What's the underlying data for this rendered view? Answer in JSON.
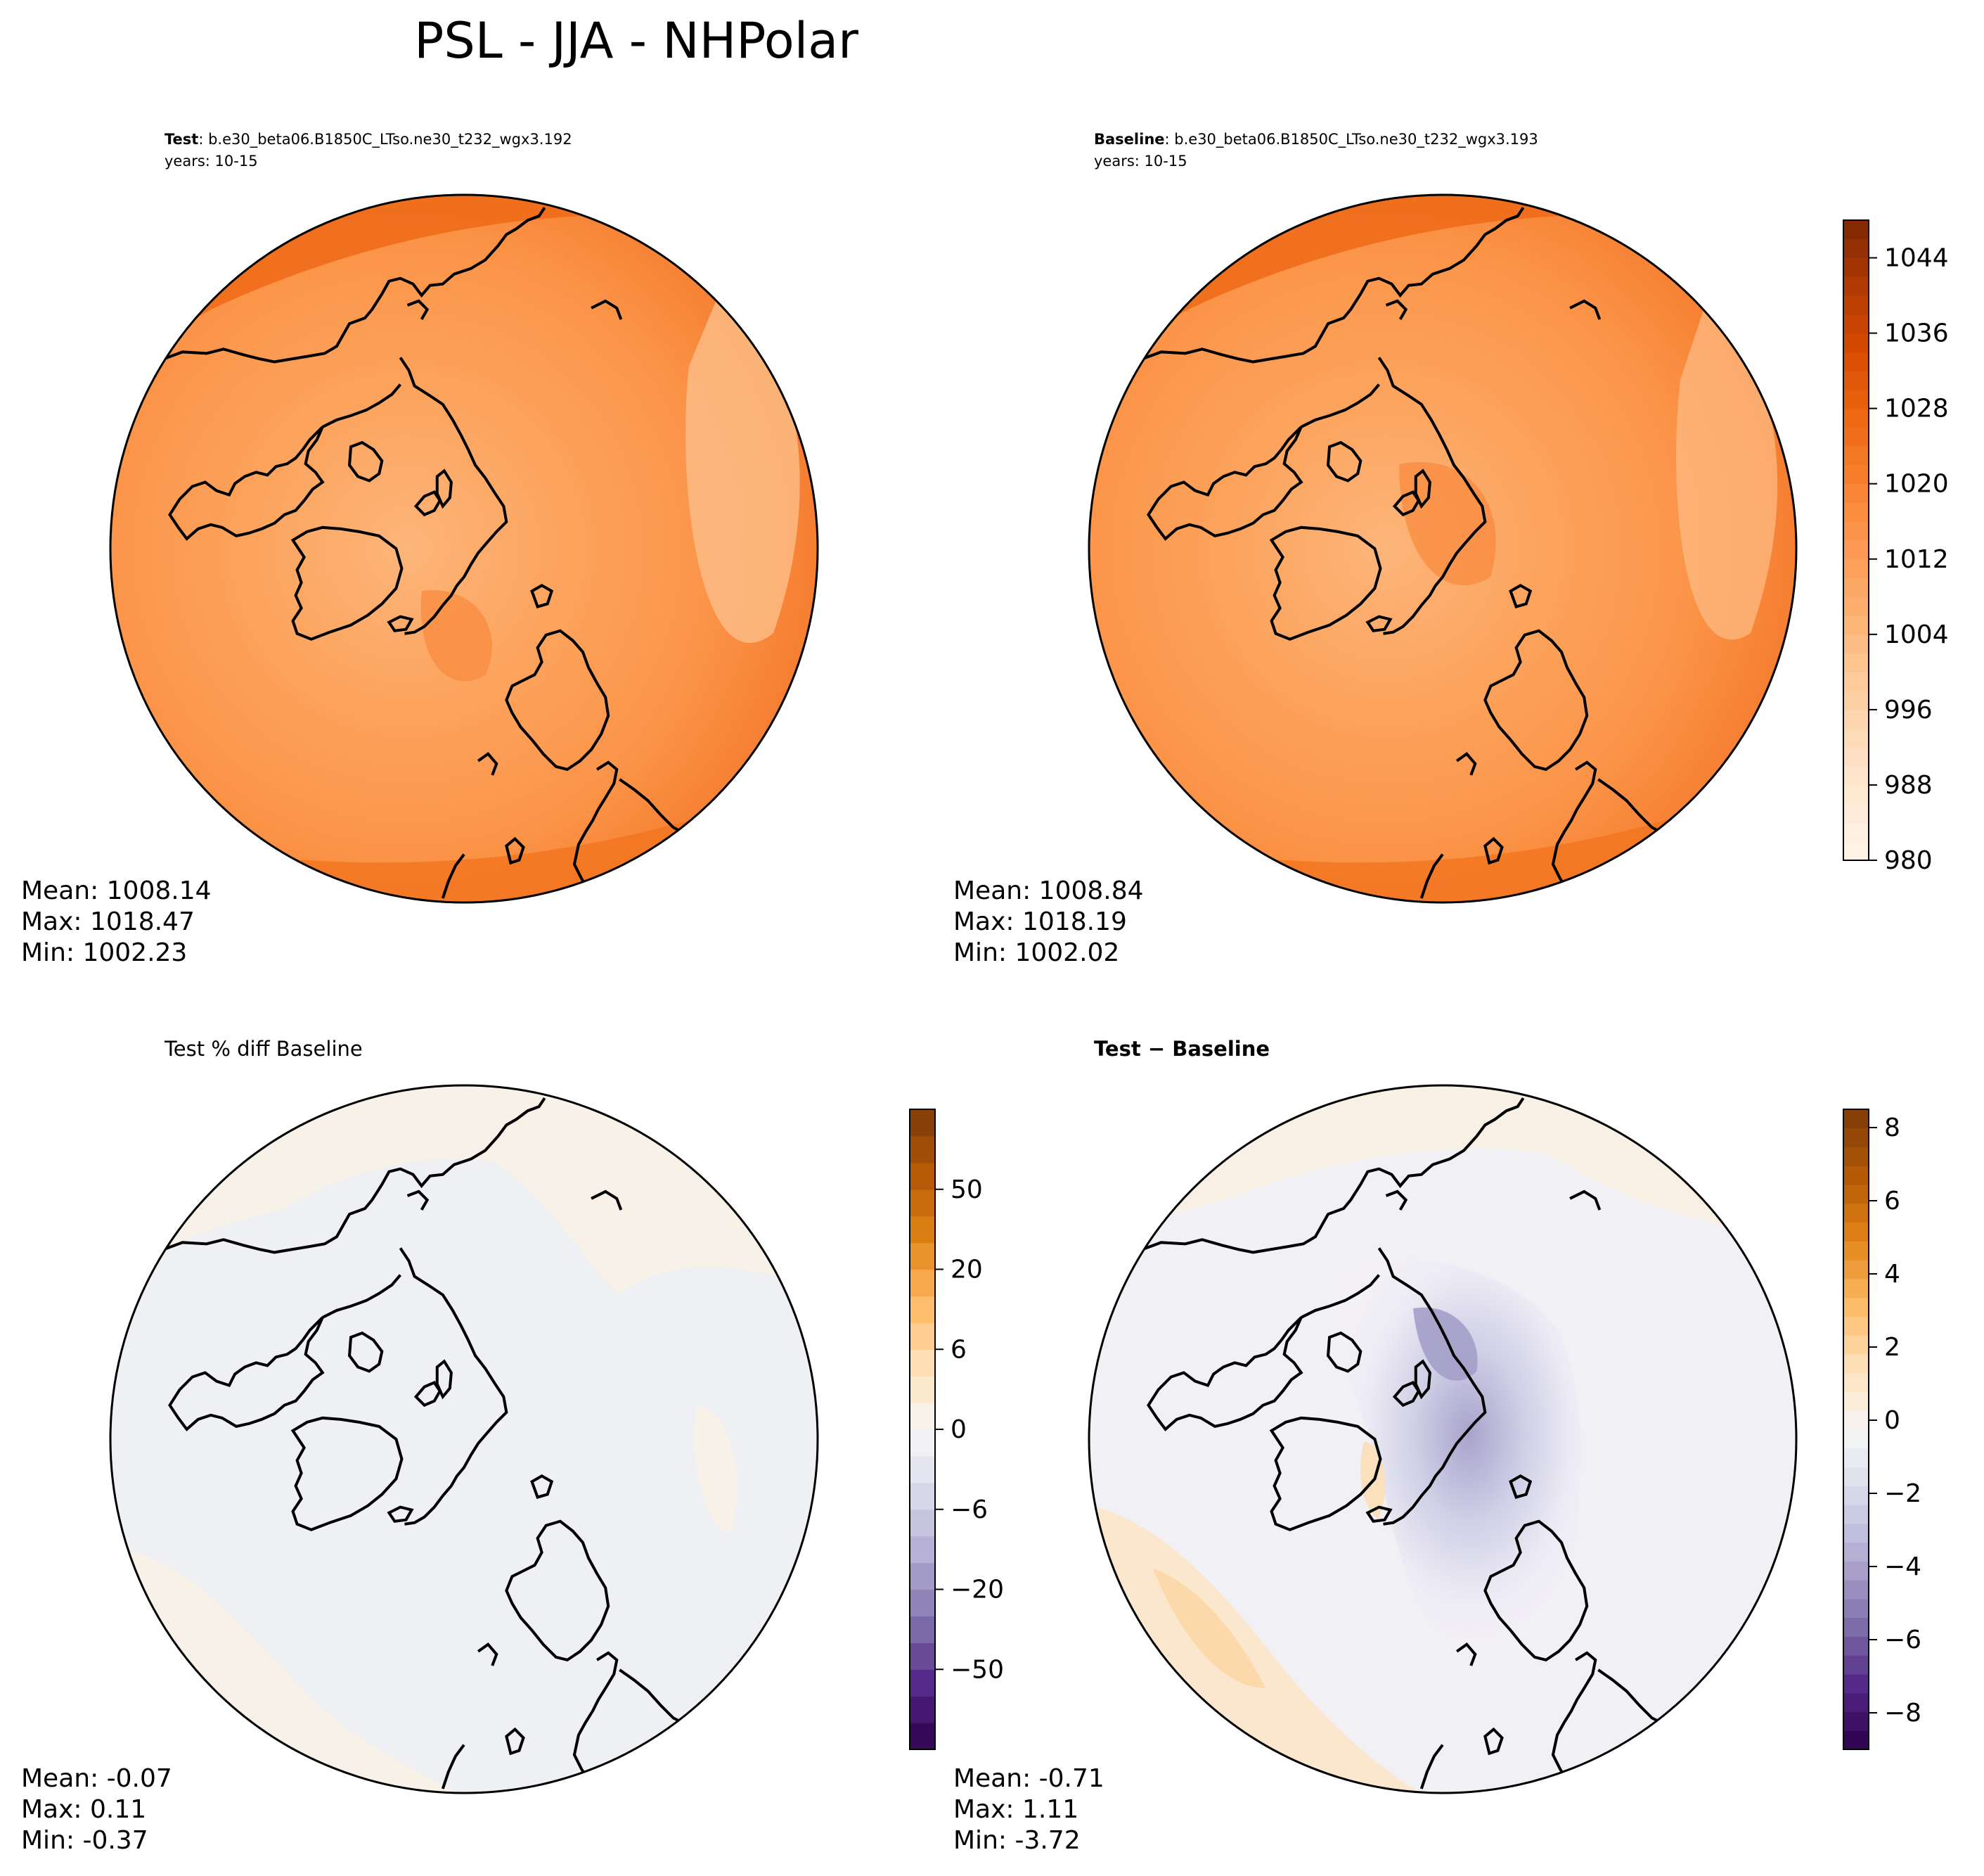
{
  "figure": {
    "title": "PSL - JJA - NHPolar"
  },
  "colors": {
    "oranges": [
      "#fff5eb",
      "#fee9d4",
      "#fddab6",
      "#fdc692",
      "#fdad6c",
      "#fd9650",
      "#f87f2c",
      "#ec6512",
      "#d84901",
      "#b03a03",
      "#7f2704"
    ],
    "diverging": [
      "#2d004b",
      "#542788",
      "#8073ac",
      "#b2abd2",
      "#d8daeb",
      "#f7f7f7",
      "#fee0b6",
      "#fdb863",
      "#e08214",
      "#b35806",
      "#7f3b08"
    ]
  },
  "chart_data": [
    {
      "type": "heatmap",
      "panel": "test",
      "title_bold": "Test",
      "title_rest": ": b.e30_beta06.B1850C_LTso.ne30_t232_wgx3.192",
      "subtitle": "years: 10-15",
      "projection": "North Polar Stereographic",
      "stats": {
        "mean": "Mean: 1008.14",
        "max": "Max: 1018.47",
        "min": "Min: 1002.23"
      }
    },
    {
      "type": "heatmap",
      "panel": "baseline",
      "title_bold": "Baseline",
      "title_rest": ": b.e30_beta06.B1850C_LTso.ne30_t232_wgx3.193",
      "subtitle": "years: 10-15",
      "projection": "North Polar Stereographic",
      "stats": {
        "mean": "Mean: 1008.84",
        "max": "Max: 1018.19",
        "min": "Min: 1002.02"
      },
      "colorbar": {
        "range": [
          980,
          1048
        ],
        "ticks": [
          "980",
          "988",
          "996",
          "1004",
          "1012",
          "1020",
          "1028",
          "1036",
          "1044"
        ]
      }
    },
    {
      "type": "heatmap",
      "panel": "pct_diff",
      "title": "Test % diff Baseline",
      "projection": "North Polar Stereographic",
      "stats": {
        "mean": "Mean: -0.07",
        "max": "Max:  0.11",
        "min": "Min: -0.37"
      },
      "colorbar": {
        "ticks": [
          "50",
          "20",
          "6",
          "0",
          "−6",
          "−20",
          "−50"
        ]
      }
    },
    {
      "type": "heatmap",
      "panel": "difference",
      "title": "Test − Baseline",
      "projection": "North Polar Stereographic",
      "stats": {
        "mean": "Mean: -0.71",
        "max": "Max:  1.11",
        "min": "Min: -3.72"
      },
      "colorbar": {
        "range": [
          -9,
          8.5
        ],
        "ticks": [
          "8",
          "6",
          "4",
          "2",
          "0",
          "−2",
          "−4",
          "−6",
          "−8"
        ]
      }
    }
  ]
}
